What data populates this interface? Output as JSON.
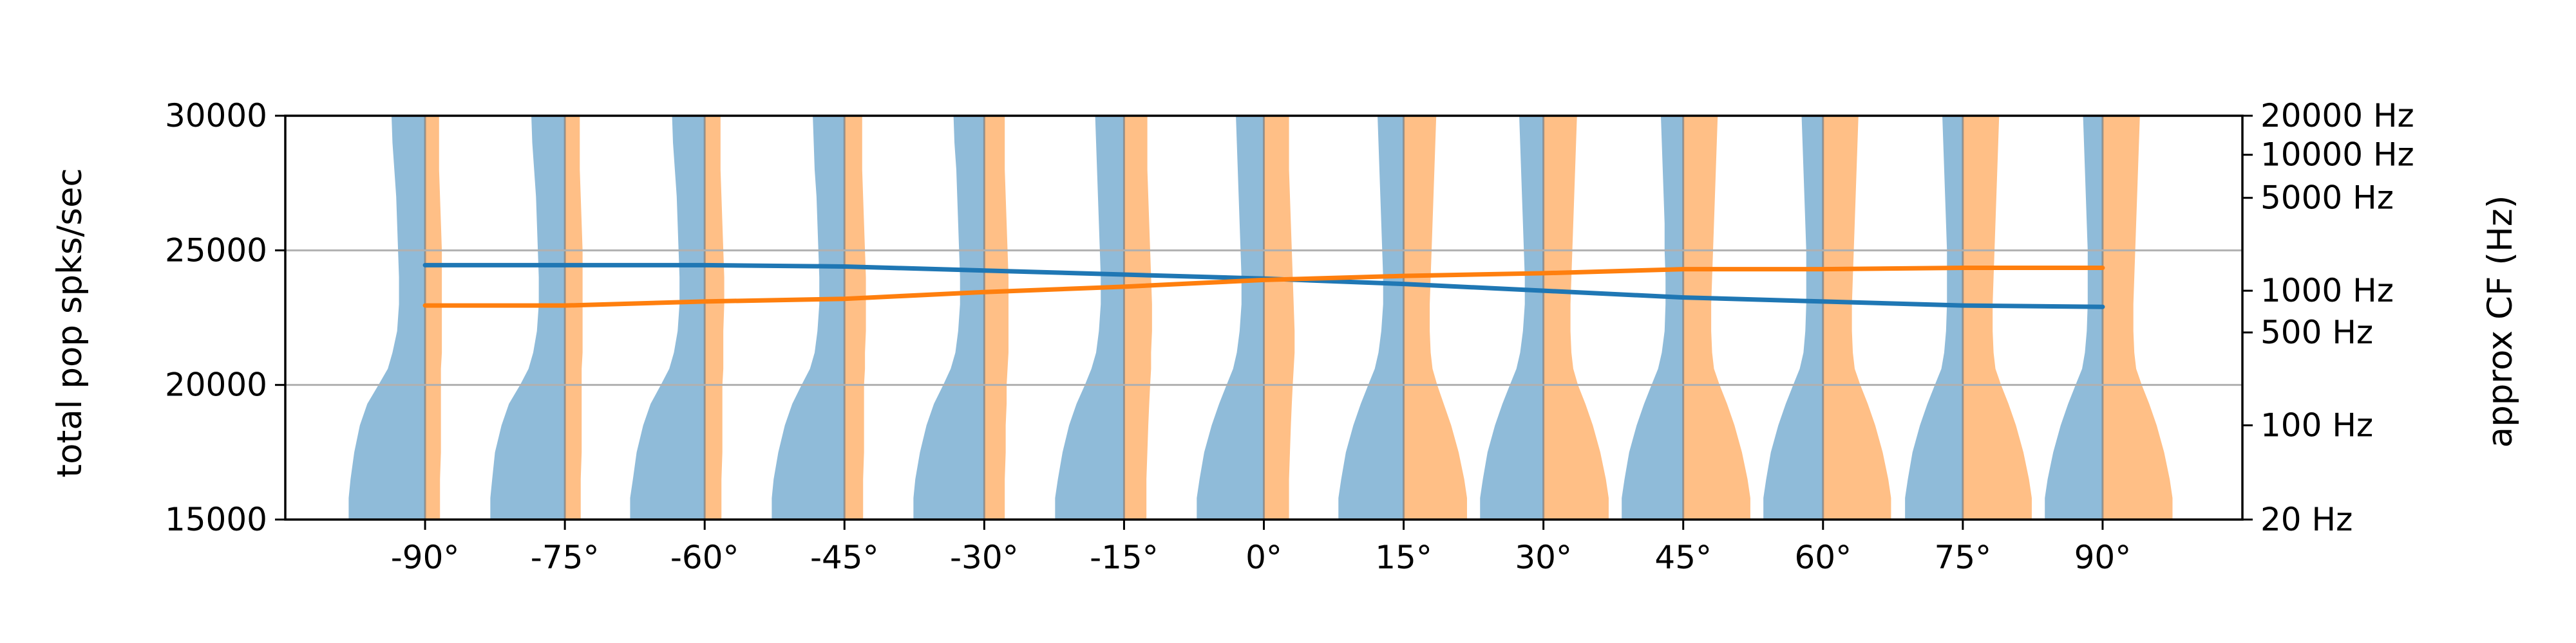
{
  "chart_data": {
    "type": "line",
    "title": "",
    "xlabel": "",
    "ylabel": "total pop spks/sec",
    "ylabel_right": "approx CF (Hz)",
    "x": [
      -90,
      -75,
      -60,
      -45,
      -30,
      -15,
      0,
      15,
      30,
      45,
      60,
      75,
      90
    ],
    "x_tick_labels": [
      "-90°",
      "-75°",
      "-60°",
      "-45°",
      "-30°",
      "-15°",
      "0°",
      "15°",
      "30°",
      "45°",
      "60°",
      "75°",
      "90°"
    ],
    "xlim": [
      -105,
      105
    ],
    "ylim": [
      15000,
      30000
    ],
    "y_ticks": [
      15000,
      20000,
      25000,
      30000
    ],
    "y_tick_labels": [
      "15000",
      "20000",
      "25000",
      "30000"
    ],
    "grid": "horizontal at 20000 and 25000",
    "right_axis": {
      "scale": "log-like frequency (approximate characteristic frequency)",
      "tick_labels": [
        "20 Hz",
        "100 Hz",
        "500 Hz",
        "1000 Hz",
        "5000 Hz",
        "10000 Hz",
        "20000 Hz"
      ],
      "tick_y": [
        15000,
        18500,
        21950,
        23500,
        26950,
        28550,
        30000
      ]
    },
    "series": [
      {
        "color": "#1f77b4",
        "values": [
          24450,
          24450,
          24450,
          24400,
          24250,
          24100,
          23950,
          23750,
          23500,
          23250,
          23100,
          22950,
          22900
        ]
      },
      {
        "color": "#ff7f0e",
        "values": [
          22950,
          22950,
          23100,
          23200,
          23450,
          23650,
          23900,
          24050,
          24150,
          24300,
          24300,
          24350,
          24350
        ]
      }
    ],
    "population_profiles": {
      "description_of_encoding": "At each angle, a mirrored rate-vs-CF histogram: blue bars extend left, orange bars extend right of the angle line",
      "left_color": "#1f77b4",
      "right_color": "#ff7f0e",
      "shape_levels_y": [
        15000,
        15800,
        16500,
        17500,
        18500,
        19300,
        20000,
        20600,
        21200,
        22000,
        23000,
        24000,
        25000,
        26000,
        27000,
        28000,
        29000,
        30000
      ],
      "left_widths_deg": [
        [
          8.2,
          8.2,
          8.0,
          7.6,
          7.0,
          6.2,
          5.0,
          4.0,
          3.5,
          3.0,
          2.8,
          2.8,
          2.9,
          3.0,
          3.1,
          3.3,
          3.5,
          3.6
        ],
        [
          8.0,
          8.0,
          7.8,
          7.5,
          6.8,
          6.0,
          4.8,
          3.9,
          3.4,
          3.0,
          2.8,
          2.8,
          2.9,
          3.0,
          3.1,
          3.3,
          3.5,
          3.6
        ],
        [
          8.0,
          8.0,
          7.7,
          7.3,
          6.6,
          5.8,
          4.7,
          3.8,
          3.3,
          2.9,
          2.7,
          2.7,
          2.8,
          2.9,
          3.0,
          3.2,
          3.4,
          3.5
        ],
        [
          7.8,
          7.8,
          7.6,
          7.1,
          6.4,
          5.6,
          4.6,
          3.7,
          3.2,
          2.9,
          2.7,
          2.7,
          2.8,
          2.9,
          3.0,
          3.2,
          3.3,
          3.4
        ],
        [
          7.6,
          7.6,
          7.4,
          6.9,
          6.2,
          5.4,
          4.4,
          3.6,
          3.1,
          2.8,
          2.6,
          2.6,
          2.7,
          2.8,
          2.9,
          3.0,
          3.2,
          3.3
        ],
        [
          7.4,
          7.4,
          7.1,
          6.6,
          5.9,
          5.1,
          4.2,
          3.5,
          3.0,
          2.7,
          2.5,
          2.5,
          2.6,
          2.7,
          2.8,
          2.9,
          3.0,
          3.1
        ],
        [
          7.2,
          7.2,
          6.9,
          6.4,
          5.6,
          4.8,
          4.0,
          3.3,
          2.9,
          2.6,
          2.4,
          2.4,
          2.5,
          2.6,
          2.7,
          2.8,
          2.9,
          3.0
        ],
        [
          7.0,
          7.0,
          6.7,
          6.2,
          5.4,
          4.6,
          3.8,
          3.1,
          2.7,
          2.4,
          2.2,
          2.2,
          2.3,
          2.4,
          2.5,
          2.6,
          2.7,
          2.8
        ],
        [
          6.8,
          6.8,
          6.5,
          6.0,
          5.2,
          4.4,
          3.6,
          2.9,
          2.5,
          2.2,
          2.0,
          2.0,
          2.1,
          2.2,
          2.3,
          2.4,
          2.5,
          2.6
        ],
        [
          6.6,
          6.6,
          6.3,
          5.8,
          5.0,
          4.2,
          3.4,
          2.7,
          2.3,
          2.0,
          1.9,
          1.9,
          2.0,
          2.0,
          2.1,
          2.2,
          2.3,
          2.4
        ],
        [
          6.4,
          6.4,
          6.1,
          5.6,
          4.8,
          4.0,
          3.2,
          2.5,
          2.1,
          1.9,
          1.8,
          1.8,
          1.8,
          1.9,
          2.0,
          2.1,
          2.2,
          2.3
        ],
        [
          6.2,
          6.2,
          5.9,
          5.4,
          4.6,
          3.8,
          3.0,
          2.3,
          2.0,
          1.8,
          1.7,
          1.7,
          1.7,
          1.8,
          1.9,
          2.0,
          2.1,
          2.2
        ],
        [
          6.2,
          6.2,
          5.9,
          5.3,
          4.5,
          3.7,
          2.9,
          2.2,
          1.9,
          1.7,
          1.6,
          1.6,
          1.6,
          1.7,
          1.8,
          1.9,
          2.0,
          2.1
        ]
      ],
      "right_widths_deg": [
        [
          1.6,
          1.6,
          1.6,
          1.7,
          1.7,
          1.7,
          1.7,
          1.7,
          1.8,
          1.8,
          1.8,
          1.8,
          1.8,
          1.7,
          1.6,
          1.5,
          1.5,
          1.5
        ],
        [
          1.7,
          1.7,
          1.7,
          1.8,
          1.8,
          1.8,
          1.8,
          1.8,
          1.9,
          1.9,
          1.9,
          1.9,
          1.9,
          1.8,
          1.7,
          1.6,
          1.6,
          1.6
        ],
        [
          1.8,
          1.8,
          1.8,
          1.9,
          1.9,
          1.9,
          1.9,
          2.0,
          2.0,
          2.0,
          2.1,
          2.1,
          2.0,
          1.9,
          1.8,
          1.7,
          1.7,
          1.7
        ],
        [
          2.0,
          2.0,
          2.0,
          2.1,
          2.1,
          2.1,
          2.1,
          2.2,
          2.2,
          2.3,
          2.3,
          2.3,
          2.2,
          2.1,
          2.0,
          1.9,
          1.9,
          1.9
        ],
        [
          2.2,
          2.2,
          2.2,
          2.3,
          2.3,
          2.4,
          2.4,
          2.5,
          2.6,
          2.6,
          2.6,
          2.6,
          2.5,
          2.4,
          2.3,
          2.2,
          2.2,
          2.2
        ],
        [
          2.4,
          2.4,
          2.4,
          2.5,
          2.6,
          2.7,
          2.8,
          2.9,
          2.9,
          3.0,
          3.0,
          2.9,
          2.8,
          2.7,
          2.6,
          2.5,
          2.5,
          2.5
        ],
        [
          2.7,
          2.7,
          2.7,
          2.8,
          2.9,
          3.0,
          3.1,
          3.2,
          3.3,
          3.3,
          3.2,
          3.1,
          3.0,
          2.9,
          2.8,
          2.7,
          2.7,
          2.7
        ],
        [
          6.8,
          6.8,
          6.5,
          5.9,
          5.1,
          4.3,
          3.6,
          3.1,
          2.9,
          2.8,
          2.8,
          2.9,
          3.0,
          3.1,
          3.2,
          3.3,
          3.4,
          3.5
        ],
        [
          7.0,
          7.0,
          6.7,
          6.1,
          5.3,
          4.5,
          3.7,
          3.2,
          3.0,
          2.9,
          2.9,
          3.0,
          3.1,
          3.2,
          3.3,
          3.4,
          3.5,
          3.6
        ],
        [
          7.2,
          7.2,
          6.9,
          6.3,
          5.5,
          4.7,
          3.9,
          3.3,
          3.1,
          3.0,
          3.0,
          3.1,
          3.2,
          3.3,
          3.4,
          3.5,
          3.6,
          3.7
        ],
        [
          7.3,
          7.3,
          7.0,
          6.4,
          5.6,
          4.8,
          4.0,
          3.4,
          3.2,
          3.1,
          3.1,
          3.2,
          3.3,
          3.4,
          3.5,
          3.6,
          3.7,
          3.8
        ],
        [
          7.4,
          7.4,
          7.1,
          6.5,
          5.7,
          4.9,
          4.1,
          3.5,
          3.3,
          3.2,
          3.2,
          3.3,
          3.4,
          3.5,
          3.6,
          3.7,
          3.8,
          3.9
        ],
        [
          7.5,
          7.5,
          7.2,
          6.6,
          5.8,
          5.0,
          4.2,
          3.6,
          3.4,
          3.3,
          3.3,
          3.4,
          3.5,
          3.6,
          3.7,
          3.8,
          3.9,
          4.0
        ]
      ]
    }
  },
  "colors": {
    "grid": "#b0b0b0",
    "axis": "#000000",
    "left_fill": "#1f77b4",
    "right_fill": "#ff7f0e",
    "fill_opacity": 0.5
  }
}
